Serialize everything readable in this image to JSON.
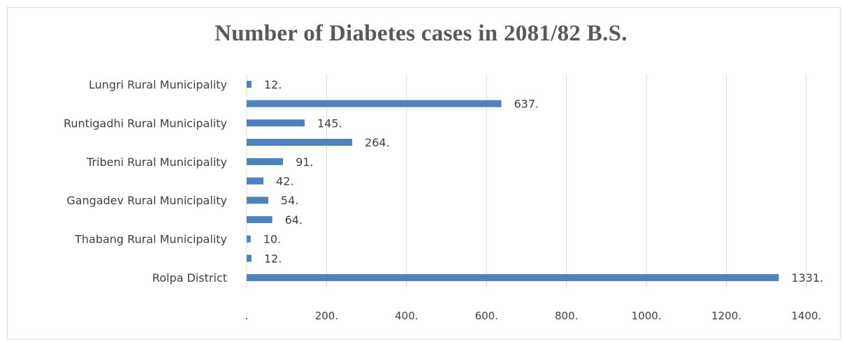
{
  "chart_data": {
    "type": "bar",
    "orientation": "horizontal",
    "title": "Number of Diabetes cases in 2081/82 B.S.",
    "categories": [
      "Lungri Rural Municipality",
      "",
      "Runtigadhi Rural Municipality",
      "",
      "Tribeni Rural Municipality",
      "",
      "Gangadev Rural Municipality",
      "",
      "Thabang Rural Municipality",
      "",
      "Rolpa District"
    ],
    "values": [
      12,
      637,
      145,
      264,
      91,
      42,
      54,
      64,
      10,
      12,
      1331
    ],
    "value_labels": [
      "12.",
      "637.",
      "145.",
      "264.",
      "91.",
      "42.",
      "54.",
      "64.",
      "10.",
      "12.",
      "1331."
    ],
    "xlim": [
      0,
      1400
    ],
    "ticks": [
      0,
      200,
      400,
      600,
      800,
      1000,
      1200,
      1400
    ],
    "tick_labels": [
      ".",
      "200.",
      "400.",
      "600.",
      "800.",
      "1000.",
      "1200.",
      "1400."
    ],
    "grid": true,
    "legend": "none",
    "bar_color": "#4f81bd",
    "grid_color": "#d9d9d9"
  }
}
